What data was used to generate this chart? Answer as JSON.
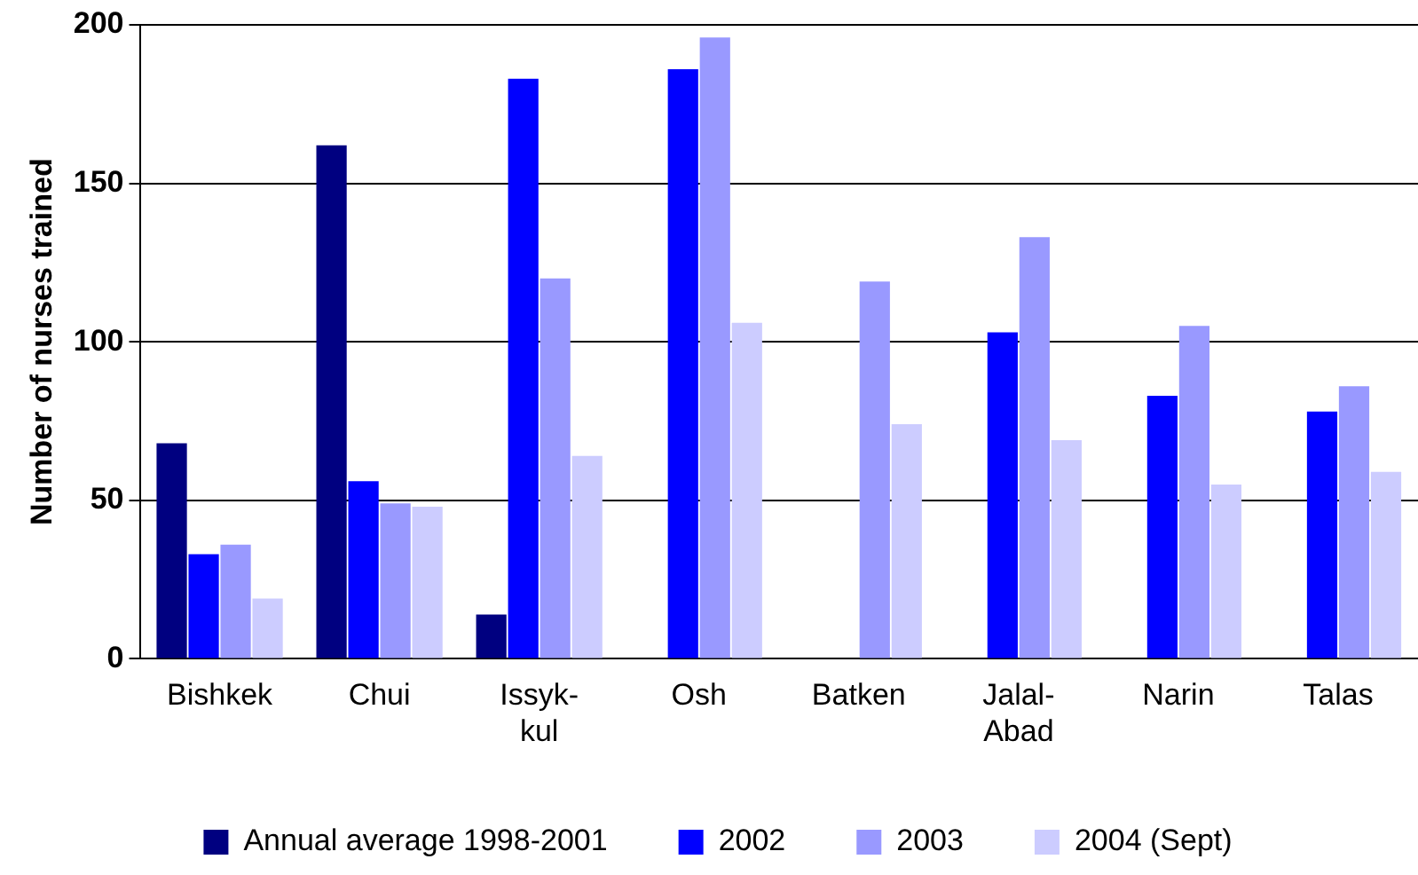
{
  "chart_data": {
    "type": "bar",
    "ylabel": "Number of nurses trained",
    "categories": [
      "Bishkek",
      "Chui",
      "Issyk-kul",
      "Osh",
      "Batken",
      "Jalal-Abad",
      "Narin",
      "Talas"
    ],
    "series": [
      {
        "name": "Annual average 1998-2001",
        "color": "#000080",
        "values": [
          68,
          162,
          14,
          null,
          null,
          null,
          null,
          null
        ]
      },
      {
        "name": "2002",
        "color": "#0000ff",
        "values": [
          33,
          56,
          183,
          186,
          null,
          103,
          83,
          78
        ]
      },
      {
        "name": "2003",
        "color": "#9999ff",
        "values": [
          36,
          49,
          120,
          196,
          119,
          133,
          105,
          86
        ]
      },
      {
        "name": "2004 (Sept)",
        "color": "#ccccff",
        "values": [
          19,
          48,
          64,
          106,
          74,
          69,
          55,
          59
        ]
      }
    ],
    "ylim": [
      0,
      200
    ],
    "yticks": [
      0,
      50,
      100,
      150,
      200
    ],
    "grid": "y",
    "legend": "bottom"
  }
}
